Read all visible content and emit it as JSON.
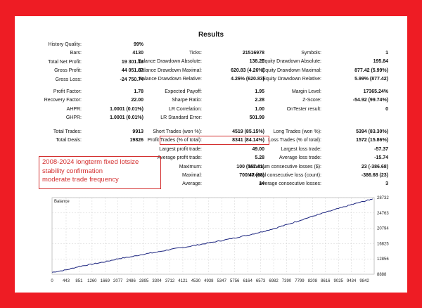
{
  "results": {
    "title": "Results",
    "col1": [
      {
        "label": "History Quality:",
        "value": "99%"
      },
      {
        "label": "Bars:",
        "value": "4130"
      },
      {
        "label": "Total Net Profit:",
        "value": "19 301.13"
      },
      {
        "label": "Gross Profit:",
        "value": "44 051.87"
      },
      {
        "label": "Gross Loss:",
        "value": "-24 750.74"
      }
    ],
    "col2": [
      {
        "label": "Ticks:",
        "value": "21516978"
      },
      {
        "label": "Balance Drawdown Absolute:",
        "value": "138.20"
      },
      {
        "label": "Balance Drawdown Maximal:",
        "value": "620.83 (4.26%)"
      },
      {
        "label": "Balance Drawdown Relative:",
        "value": "4.26% (620.83)"
      }
    ],
    "col3": [
      {
        "label": "Symbols:",
        "value": "1"
      },
      {
        "label": "Equity Drawdown Absolute:",
        "value": "195.84"
      },
      {
        "label": "Equity Drawdown Maximal:",
        "value": "877.42 (5.99%)"
      },
      {
        "label": "Equity Drawdown Relative:",
        "value": "5.99% (877.42)"
      }
    ],
    "col1b": [
      {
        "label": "Profit Factor:",
        "value": "1.78"
      },
      {
        "label": "Recovery Factor:",
        "value": "22.00"
      },
      {
        "label": "AHPR:",
        "value": "1.0001 (0.01%)"
      },
      {
        "label": "GHPR:",
        "value": "1.0001 (0.01%)"
      }
    ],
    "col2b": [
      {
        "label": "Expected Payoff:",
        "value": "1.95"
      },
      {
        "label": "Sharpe Ratio:",
        "value": "2.28"
      },
      {
        "label": "LR Correlation:",
        "value": "1.00"
      },
      {
        "label": "LR Standard Error:",
        "value": "501.99"
      }
    ],
    "col3b": [
      {
        "label": "Margin Level:",
        "value": "17365.24%"
      },
      {
        "label": "Z-Score:",
        "value": "-54.92 (99.74%)"
      },
      {
        "label": "OnTester result:",
        "value": "0"
      }
    ],
    "col1c": [
      {
        "label": "Total Trades:",
        "value": "9913"
      },
      {
        "label": "Total Deals:",
        "value": "19826"
      }
    ],
    "col2c": [
      {
        "label": "Short Trades (won %):",
        "value": "4519 (85.15%)"
      },
      {
        "label": "Profit Trades (% of total):",
        "value": "8341 (84.14%)"
      },
      {
        "label": "Largest profit trade:",
        "value": "49.00"
      },
      {
        "label": "Average profit trade:",
        "value": "5.28"
      },
      {
        "label": "Maximum:",
        "value": "100 (567.41)"
      },
      {
        "label": "Maximal:",
        "value": "700.47 (68)"
      },
      {
        "label": "Average:",
        "value": "14"
      }
    ],
    "col3c": [
      {
        "label": "Long Trades (won %):",
        "value": "5394 (83.30%)"
      },
      {
        "label": "Loss Trades (% of total):",
        "value": "1572 (15.86%)"
      },
      {
        "label": "Largest loss trade:",
        "value": "-57.37"
      },
      {
        "label": "Average loss trade:",
        "value": "-15.74"
      },
      {
        "label": "Maximum consecutive losses ($):",
        "value": "23 (-386.68)"
      },
      {
        "label": "Maximal consecutive loss (count):",
        "value": "-386.68 (23)"
      },
      {
        "label": "Average consecutive losses:",
        "value": "3"
      }
    ]
  },
  "note": {
    "lines": [
      "2008-2024 longterm fixed lotsize",
      "stability confirmation",
      "moderate trade frequency"
    ],
    "color": "#d32f2f"
  },
  "chart_data": {
    "type": "line",
    "title": "Balance",
    "series": [
      {
        "values": [
          [
            0,
            9400
          ],
          [
            443,
            10000
          ],
          [
            851,
            10900
          ],
          [
            1260,
            11500
          ],
          [
            1669,
            12100
          ],
          [
            2077,
            12900
          ],
          [
            2486,
            13400
          ],
          [
            2895,
            14100
          ],
          [
            3304,
            14600
          ],
          [
            3712,
            15300
          ],
          [
            4121,
            15800
          ],
          [
            4530,
            16400
          ],
          [
            4938,
            17000
          ],
          [
            5347,
            17600
          ],
          [
            5756,
            18300
          ],
          [
            6164,
            19000
          ],
          [
            6573,
            19800
          ],
          [
            6982,
            20700
          ],
          [
            7390,
            21700
          ],
          [
            7799,
            22800
          ],
          [
            8208,
            23900
          ],
          [
            8616,
            24900
          ],
          [
            9025,
            25900
          ],
          [
            9434,
            26900
          ],
          [
            9842,
            27800
          ],
          [
            10100,
            28400
          ]
        ]
      }
    ],
    "x_ticks": [
      "0",
      "443",
      "851",
      "1260",
      "1669",
      "2077",
      "2486",
      "2895",
      "3304",
      "3712",
      "4121",
      "4530",
      "4938",
      "5347",
      "5756",
      "6164",
      "6573",
      "6982",
      "7390",
      "7799",
      "8208",
      "8616",
      "9025",
      "9434",
      "9842"
    ],
    "y_ticks": [
      "28732",
      "24763",
      "20794",
      "16825",
      "12856",
      "8888"
    ],
    "ylim": [
      8888,
      28732
    ],
    "xlim": [
      0,
      10150
    ],
    "grid": true,
    "line_color": "#1a237e"
  }
}
